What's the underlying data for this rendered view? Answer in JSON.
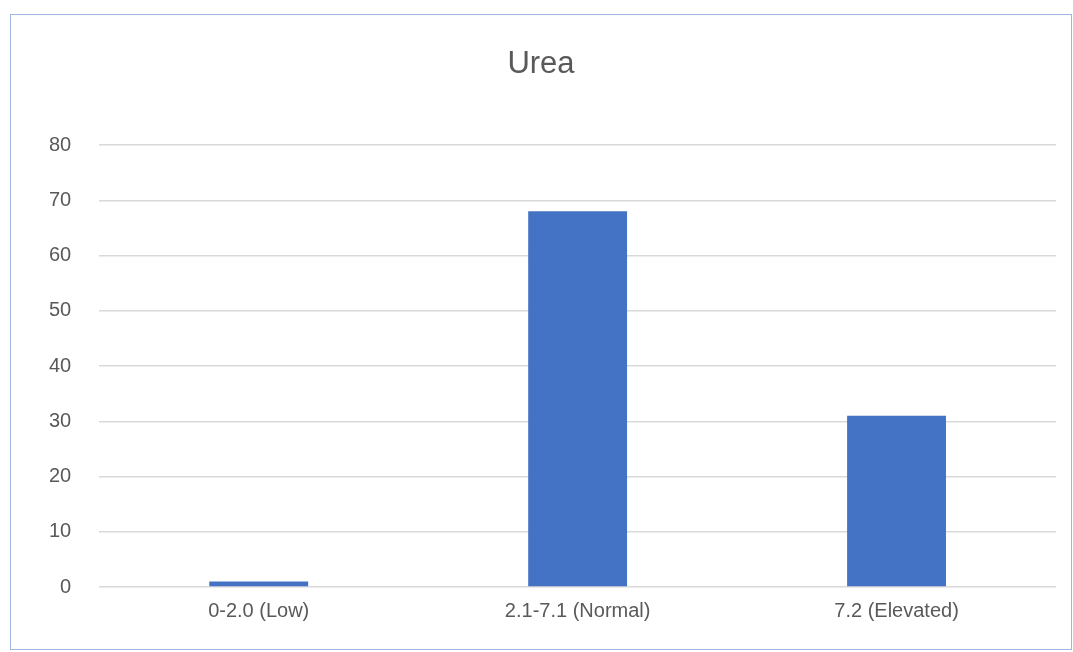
{
  "chart_data": {
    "type": "bar",
    "title": "Urea",
    "categories": [
      "0-2.0 (Low)",
      "2.1-7.1 (Normal)",
      "7.2 (Elevated)"
    ],
    "values": [
      1,
      68,
      31
    ],
    "color": "#4472c4",
    "ylim": [
      0,
      80
    ],
    "yticks": [
      0,
      10,
      20,
      30,
      40,
      50,
      60,
      70,
      80
    ],
    "grid": "y"
  }
}
